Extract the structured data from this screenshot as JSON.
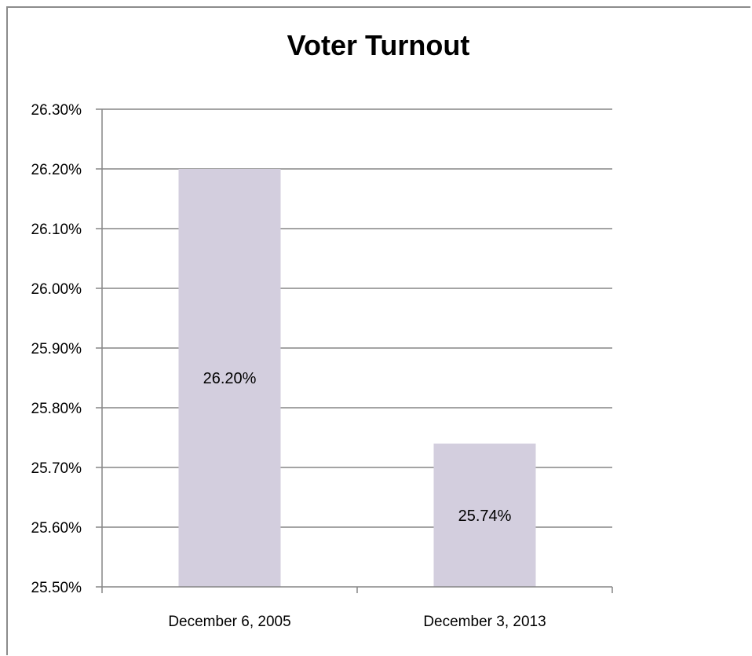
{
  "chart_data": {
    "type": "bar",
    "title": "Voter Turnout",
    "categories": [
      "December 6, 2005",
      "December 3, 2013"
    ],
    "values": [
      26.2,
      25.74
    ],
    "data_labels": [
      "26.20%",
      "25.74%"
    ],
    "ylim": [
      25.5,
      26.3
    ],
    "y_ticks": [
      25.5,
      25.6,
      25.7,
      25.8,
      25.9,
      26.0,
      26.1,
      26.2,
      26.3
    ],
    "y_tick_labels": [
      "25.50%",
      "25.60%",
      "25.70%",
      "25.80%",
      "25.90%",
      "26.00%",
      "26.10%",
      "26.20%",
      "26.30%"
    ],
    "xlabel": "",
    "ylabel": "",
    "grid": true,
    "legend": "none",
    "bar_color": "#d3cede",
    "grid_color": "#868686"
  }
}
